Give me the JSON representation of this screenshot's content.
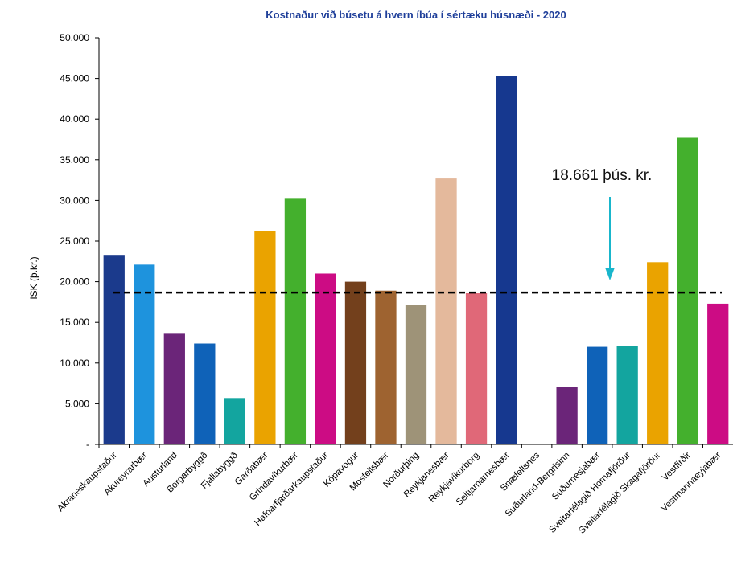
{
  "chart_data": {
    "type": "bar",
    "title": "Kostnaður við búsetu á hvern íbúa í sértæku húsnæði -  2020",
    "ylabel": "ISK (þ.kr.)",
    "xlabel": "",
    "ylim": [
      0,
      50000
    ],
    "yticks": [
      {
        "value": 50000,
        "label": "50.000"
      },
      {
        "value": 45000,
        "label": "45.000"
      },
      {
        "value": 40000,
        "label": "40.000"
      },
      {
        "value": 35000,
        "label": "35.000"
      },
      {
        "value": 30000,
        "label": "30.000"
      },
      {
        "value": 25000,
        "label": "25.000"
      },
      {
        "value": 20000,
        "label": "20.000"
      },
      {
        "value": 15000,
        "label": "15.000"
      },
      {
        "value": 10000,
        "label": "10.000"
      },
      {
        "value": 5000,
        "label": "5.000"
      },
      {
        "value": 0,
        "label": "-"
      }
    ],
    "categories": [
      "Akraneskaupstaður",
      "Akureyrarbær",
      "Austurland",
      "Borgarbyggð",
      "Fjallabyggð",
      "Garðabær",
      "Grindavíkurbær",
      "Hafnarfjarðarkaupstaður",
      "Kópavogur",
      "Mosfellsbær",
      "Norðurþing",
      "Reykjanesbær",
      "Reykjavíkurborg",
      "Seltjarnarnesbær",
      "Snæfellsnes",
      "Suðurland-Bergrisinn",
      "Suðurnesjabær",
      "Sveitarfélagið Hornafjörður",
      "Sveitarfélagið Skagafjörður",
      "Vestfirðir",
      "Vestmannaeyjabær"
    ],
    "values": [
      23300,
      22100,
      13700,
      12400,
      5700,
      26200,
      30300,
      21000,
      20000,
      18900,
      17100,
      32700,
      18600,
      45300,
      0,
      7100,
      12000,
      12100,
      22400,
      37700,
      17300
    ],
    "colors": [
      "#1b3a8c",
      "#1e93dd",
      "#6b2579",
      "#0f62b8",
      "#13a59f",
      "#eaa300",
      "#44b02d",
      "#cc0c84",
      "#73401c",
      "#9e6330",
      "#9e9378",
      "#e4b99c",
      "#e06878",
      "#16388f",
      "#ffffff",
      "#6b2579",
      "#0f62b8",
      "#13a59f",
      "#eaa300",
      "#44b02d",
      "#cc0c84"
    ],
    "reference_line": {
      "value": 18661,
      "style": "dashed",
      "color": "#000000"
    },
    "annotation": {
      "text": "18.661 þús. kr.",
      "arrow_color": "#19b6cc"
    }
  }
}
